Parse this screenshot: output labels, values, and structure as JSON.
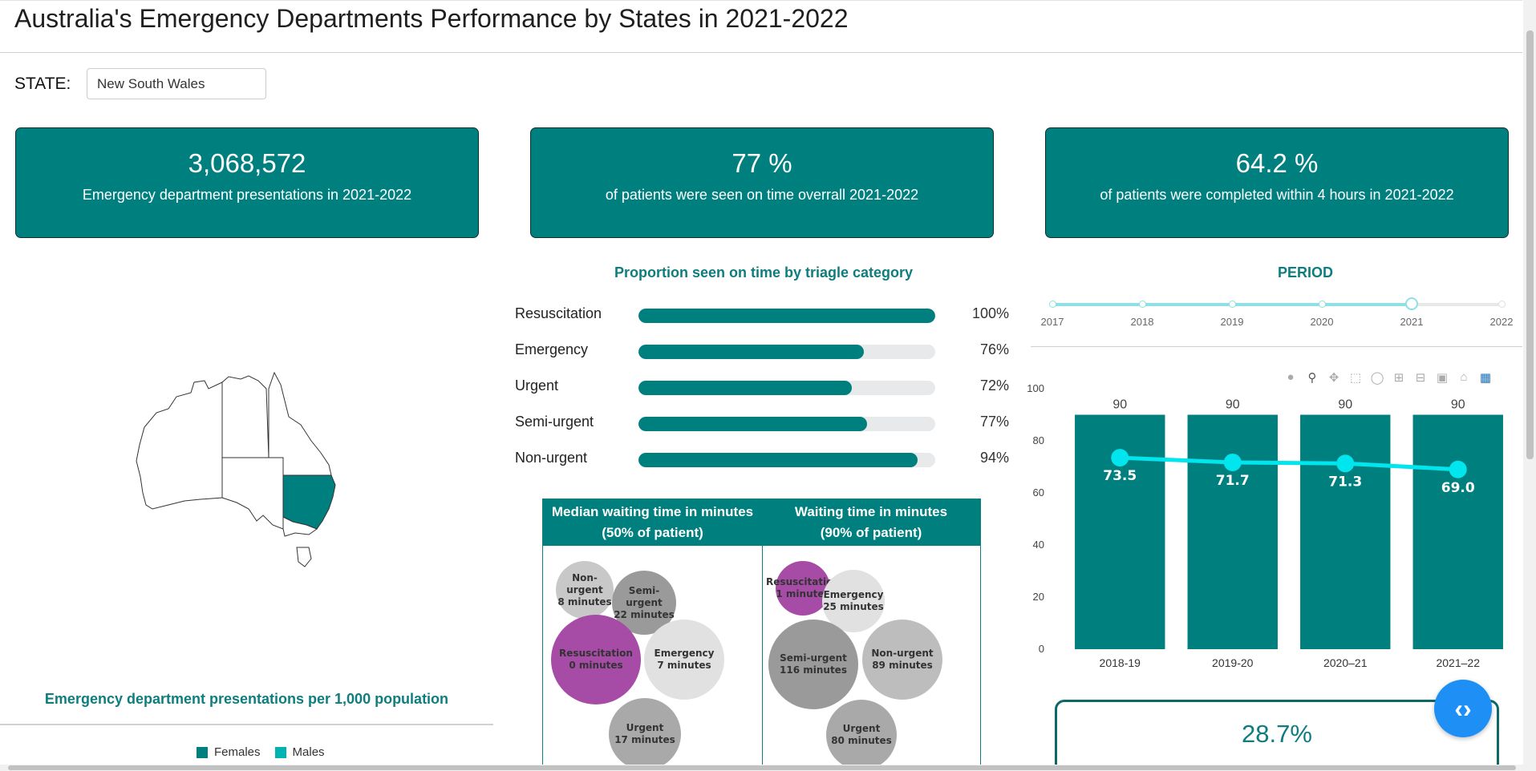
{
  "header": {
    "title": "Australia's Emergency Departments Performance by States in 2021-2022"
  },
  "filter": {
    "label": "STATE:",
    "value": "New South Wales"
  },
  "kpis": [
    {
      "value": "3,068,572",
      "text": "Emergency department presentations in 2021-2022"
    },
    {
      "value": "77 %",
      "text": "of patients were seen on time overrall 2021-2022"
    },
    {
      "value": "64.2 %",
      "text": "of patients were completed within 4 hours in 2021-2022"
    }
  ],
  "map": {
    "highlighted_state": "New South Wales",
    "caption": "Emergency department presentations per 1,000 population"
  },
  "legend": {
    "females": "Females",
    "males": "Males"
  },
  "triage": {
    "title": "Proportion seen on time by triagle category",
    "rows": [
      {
        "label": "Resuscitation",
        "value": 100,
        "pct": "100%"
      },
      {
        "label": "Emergency",
        "value": 76,
        "pct": "76%"
      },
      {
        "label": "Urgent",
        "value": 72,
        "pct": "72%"
      },
      {
        "label": "Semi-urgent",
        "value": 77,
        "pct": "77%"
      },
      {
        "label": "Non-urgent",
        "value": 94,
        "pct": "94%"
      }
    ]
  },
  "waiting": {
    "median_title_1": "Median waiting time in minutes",
    "median_title_2": "(50% of patient)",
    "p90_title_1": "Waiting time in minutes",
    "p90_title_2": "(90% of patient)",
    "median": [
      {
        "name": "Non-urgent",
        "value": "8 minutes"
      },
      {
        "name": "Semi-urgent",
        "value": "22 minutes"
      },
      {
        "name": "Resuscitation",
        "value": "0 minutes"
      },
      {
        "name": "Emergency",
        "value": "7 minutes"
      },
      {
        "name": "Urgent",
        "value": "17 minutes"
      }
    ],
    "p90": [
      {
        "name": "Resuscitation",
        "value": "1 minutes"
      },
      {
        "name": "Emergency",
        "value": "25 minutes"
      },
      {
        "name": "Semi-urgent",
        "value": "116 minutes"
      },
      {
        "name": "Non-urgent",
        "value": "89 minutes"
      },
      {
        "name": "Urgent",
        "value": "80 minutes"
      }
    ]
  },
  "period": {
    "title": "PERIOD",
    "marks": [
      "2017",
      "2018",
      "2019",
      "2020",
      "2021",
      "2022"
    ],
    "selected": "2021"
  },
  "modebar": {
    "camera": "camera-icon",
    "zoom": "zoom-icon",
    "pan": "pan-icon",
    "box": "box-select-icon",
    "lasso": "lasso-icon",
    "zoom_in": "zoom-in-icon",
    "zoom_out": "zoom-out-icon",
    "autoscale": "autoscale-icon",
    "reset": "home-icon",
    "logo": "plotly-logo-icon"
  },
  "chart_data": {
    "type": "bar",
    "categories": [
      "2018-19",
      "2019-20",
      "2020–21",
      "2021–22"
    ],
    "series": [
      {
        "type": "bar",
        "values": [
          90,
          90,
          90,
          90
        ],
        "color": "#007f7f",
        "labels": [
          "90",
          "90",
          "90",
          "90"
        ]
      },
      {
        "type": "line",
        "values": [
          73.5,
          71.7,
          71.3,
          69.0
        ],
        "color": "#00e5ee",
        "labels": [
          "73.5",
          "71.7",
          "71.3",
          "69.0"
        ]
      }
    ],
    "yticks": [
      "0",
      "20",
      "40",
      "60",
      "80",
      "100"
    ],
    "ylim": [
      0,
      100
    ]
  },
  "note": {
    "value": "28.7%"
  },
  "colors": {
    "teal": "#007f7f",
    "cyan": "#00e5ee",
    "magenta": "#a64ca6",
    "females": "#007f7f",
    "males": "#00b3b3"
  }
}
